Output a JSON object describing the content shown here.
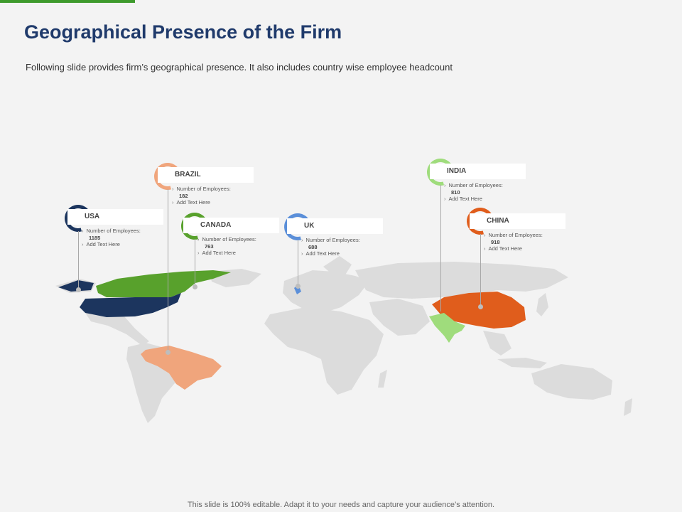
{
  "slide": {
    "title": "Geographical Presence of the Firm",
    "subtitle": "Following slide provides firm’s geographical presence. It also includes country wise employee headcount",
    "footer": "This slide is 100% editable. Adapt it to your needs and capture your audience’s attention."
  },
  "colors": {
    "accent": "#3e9a2c",
    "title": "#1f3a6b",
    "land": "#dcdcdc",
    "usa": "#1c355e",
    "canada": "#58a12c",
    "brazil": "#f0a57c",
    "uk": "#5b8fd9",
    "india": "#9fdc7c",
    "china": "#e05d1c"
  },
  "locations": [
    {
      "key": "usa",
      "name": "USA",
      "employees_label": "Number of Employees:",
      "employees": "1185",
      "extra": "Add Text Here"
    },
    {
      "key": "brazil",
      "name": "BRAZIL",
      "employees_label": "Number of Employees:",
      "employees": "182",
      "extra": "Add Text Here"
    },
    {
      "key": "canada",
      "name": "CANADA",
      "employees_label": "Number of Employees:",
      "employees": "763",
      "extra": "Add Text Here"
    },
    {
      "key": "uk",
      "name": "UK",
      "employees_label": "Number of Employees:",
      "employees": "688",
      "extra": "Add Text Here"
    },
    {
      "key": "india",
      "name": "INDIA",
      "employees_label": "Number of Employees:",
      "employees": "810",
      "extra": "Add Text Here"
    },
    {
      "key": "china",
      "name": "CHINA",
      "employees_label": "Number of Employees:",
      "employees": "918",
      "extra": "Add Text Here"
    }
  ]
}
